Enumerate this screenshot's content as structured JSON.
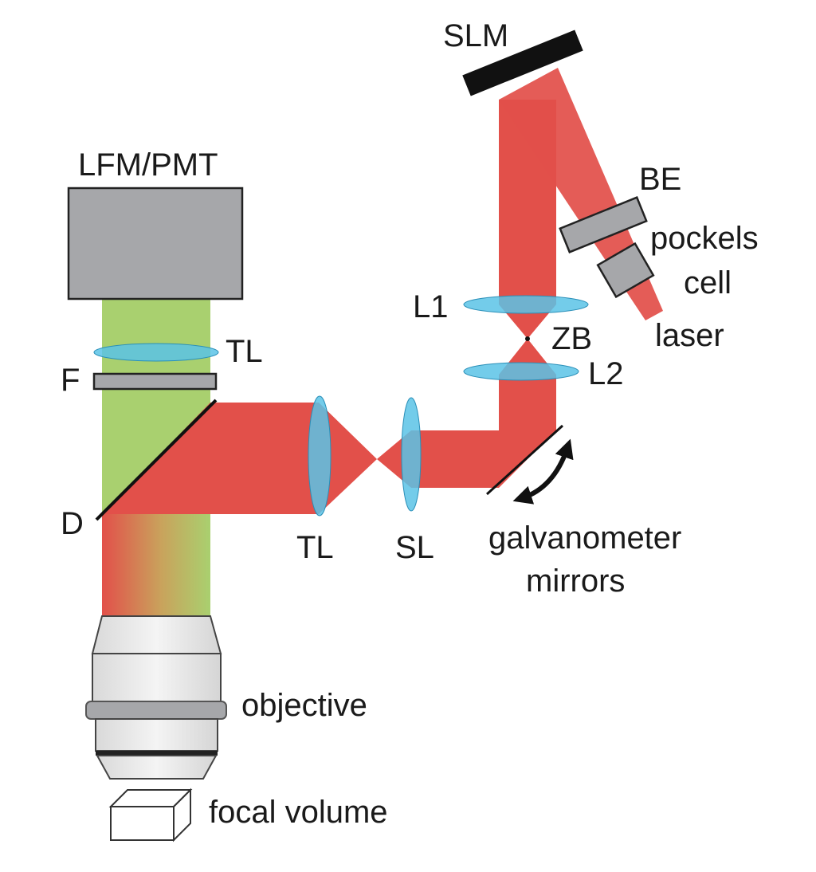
{
  "labels": {
    "slm": "SLM",
    "lfm_pmt": "LFM/PMT",
    "be": "BE",
    "pockels_cell_line1": "pockels",
    "pockels_cell_line2": "cell",
    "laser": "laser",
    "l1": "L1",
    "zb": "ZB",
    "l2": "L2",
    "tl_top": "TL",
    "f": "F",
    "d": "D",
    "tl_bottom": "TL",
    "sl": "SL",
    "galvanometer_line1": "galvanometer",
    "galvanometer_line2": "mirrors",
    "objective": "objective",
    "focal_volume": "focal volume"
  },
  "colors": {
    "beam_red": "#e2504a",
    "emission_green": "#a9d06f",
    "lens_blue": "#5bc3e6",
    "component_gray": "#a6a7aa",
    "slm_black": "#111111"
  }
}
